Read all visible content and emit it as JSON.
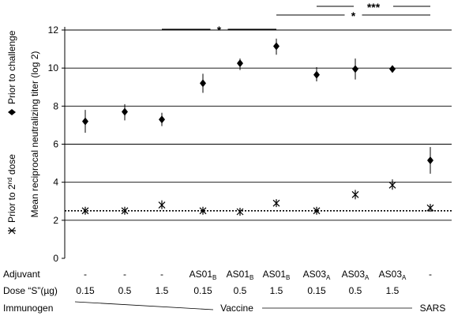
{
  "chart_data": {
    "type": "scatter",
    "ylabel": "Mean reciprocal neutralizing titer (log 2)",
    "ylim": [
      0,
      12
    ],
    "yticks": [
      "0",
      "2",
      "4",
      "6",
      "8",
      "10",
      "12"
    ],
    "grid": "horizontal",
    "reference_line": {
      "y": 2.5,
      "style": "dotted"
    },
    "groups": [
      {
        "adjuvant": "-",
        "adjuvant_sub": "",
        "dose": "0.15"
      },
      {
        "adjuvant": "-",
        "adjuvant_sub": "",
        "dose": "0.5"
      },
      {
        "adjuvant": "-",
        "adjuvant_sub": "",
        "dose": "1.5"
      },
      {
        "adjuvant": "AS01",
        "adjuvant_sub": "B",
        "dose": "0.15"
      },
      {
        "adjuvant": "AS01",
        "adjuvant_sub": "B",
        "dose": "0.5"
      },
      {
        "adjuvant": "AS01",
        "adjuvant_sub": "B",
        "dose": "1.5"
      },
      {
        "adjuvant": "AS03",
        "adjuvant_sub": "A",
        "dose": "0.15"
      },
      {
        "adjuvant": "AS03",
        "adjuvant_sub": "A",
        "dose": "0.5"
      },
      {
        "adjuvant": "AS03",
        "adjuvant_sub": "A",
        "dose": "1.5"
      },
      {
        "adjuvant": "-",
        "adjuvant_sub": "",
        "dose": ""
      }
    ],
    "series": [
      {
        "name": "Prior to challenge",
        "marker": "diamond",
        "values": [
          7.2,
          7.7,
          7.3,
          9.2,
          10.25,
          11.15,
          9.65,
          9.95,
          9.95,
          5.15
        ],
        "err_low": [
          6.6,
          7.25,
          6.95,
          8.7,
          9.9,
          10.7,
          9.3,
          9.4,
          9.8,
          4.45
        ],
        "err_high": [
          7.8,
          8.1,
          7.65,
          9.7,
          10.5,
          11.55,
          10.05,
          10.5,
          10.1,
          5.85
        ]
      },
      {
        "name": "Prior to 2nd dose",
        "marker": "asterisk",
        "values": [
          2.5,
          2.5,
          2.8,
          2.5,
          2.45,
          2.9,
          2.5,
          3.35,
          3.85,
          2.65
        ],
        "err_low": [
          2.5,
          2.5,
          2.65,
          2.5,
          2.45,
          2.8,
          2.4,
          3.1,
          3.6,
          2.6
        ],
        "err_high": [
          2.5,
          2.5,
          3.05,
          2.5,
          2.45,
          3.0,
          2.7,
          3.6,
          4.15,
          2.75
        ]
      }
    ],
    "significance": [
      {
        "from_group": 2,
        "to_group": 5,
        "label": "*"
      },
      {
        "from_group": 5,
        "to_group": 9,
        "label": "*"
      },
      {
        "from_group": 6,
        "to_group": 9,
        "label": "***"
      }
    ]
  },
  "legend": {
    "challenge_label": "Prior to challenge",
    "dose_label_prefix": "Prior to 2",
    "dose_label_sup": "nd",
    "dose_label_suffix": " dose"
  },
  "table": {
    "adjuvant_label": "Adjuvant",
    "dose_label": "Dose “S”(µg)",
    "immunogen_label": "Immunogen",
    "vaccine_label": "Vaccine",
    "sars_label": "SARS"
  }
}
